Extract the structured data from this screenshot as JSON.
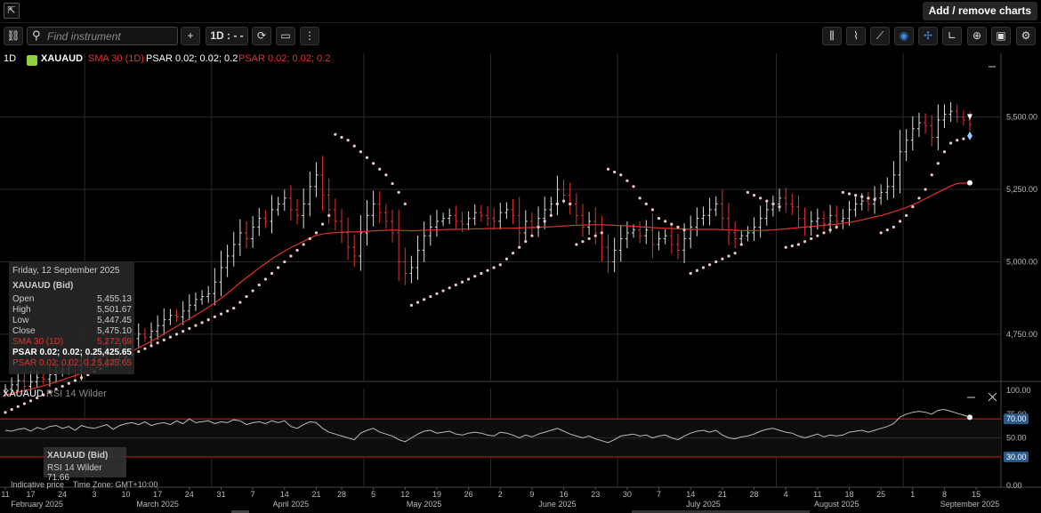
{
  "topbar": {
    "add_remove_label": "Add / remove charts",
    "logo_icon": "export-icon"
  },
  "toolbar": {
    "search_placeholder": "Find instrument",
    "timeframe_label": "1D : - -",
    "plus_label": "+",
    "left_icons": [
      "link-icon"
    ],
    "mid_icons": [
      "refresh-icon",
      "chart-type-icon",
      "more-vertical-icon"
    ],
    "right_icons": [
      "bar-chart-icon",
      "candle-chart-icon",
      "draw-line-icon",
      "eye-icon",
      "crosshair-icon",
      "indicator-icon",
      "zoom-icon",
      "camera-icon",
      "settings-icon"
    ]
  },
  "legend": {
    "timeframe": "1D",
    "symbol": "XAUAUD",
    "sma": "SMA 30 (1D)",
    "psar1": "PSAR 0.02; 0.02; 0.2",
    "psar2": "PSAR 0.02; 0.02; 0.2"
  },
  "info_box": {
    "date": "Friday, 12 September 2025",
    "title": "XAUAUD (Bid)",
    "rows": [
      {
        "k": "Open",
        "v": "5,455.13"
      },
      {
        "k": "High",
        "v": "5,501.67"
      },
      {
        "k": "Low",
        "v": "5,447.45"
      },
      {
        "k": "Close",
        "v": "5,475.10"
      },
      {
        "k": "SMA 30 (1D)",
        "v": "5,272.69"
      },
      {
        "k": "PSAR 0.02; 0.02; 0.2",
        "v": "5,425.65"
      },
      {
        "k": "PSAR 0.02; 0.02; 0.2",
        "v": "5,425.65"
      }
    ]
  },
  "rsi_panel": {
    "symbol": "XAUAUD",
    "label": "RSI 14 Wilder",
    "info_title": "XAUAUD (Bid)",
    "info_value": "RSI 14 Wilder 71.66",
    "footnote": "Indicative price    Time Zone: GMT+10:00"
  },
  "colors": {
    "up": "#dddddd",
    "down": "#e0322c",
    "sma": "#e0322c",
    "psar": "#f0c8c8",
    "rsi": "#bbbbbb",
    "level": "#d02020",
    "badge": "#2d5a8c"
  },
  "chart_data": {
    "type": "candlestick",
    "price_axis": {
      "ticks": [
        4750,
        5000,
        5250,
        5500
      ],
      "tick_labels": [
        "4,750.00",
        "5,000.00",
        "5,250.00",
        "5,500.00"
      ],
      "ylim": [
        4590,
        5720
      ]
    },
    "rsi_axis": {
      "ticks": [
        0,
        50,
        75,
        100
      ],
      "tick_labels": [
        "0.00",
        "50.00",
        "75.00",
        "100.00"
      ],
      "ylim": [
        -2,
        102
      ],
      "levels": [
        70,
        30
      ],
      "level_labels": [
        "70.00",
        "30.00"
      ]
    },
    "x_ticks": [
      {
        "label": "11",
        "i": 0
      },
      {
        "label": "17",
        "i": 4
      },
      {
        "label": "24",
        "i": 9
      },
      {
        "label": "3",
        "i": 14
      },
      {
        "label": "10",
        "i": 19
      },
      {
        "label": "17",
        "i": 24
      },
      {
        "label": "24",
        "i": 29
      },
      {
        "label": "31",
        "i": 34
      },
      {
        "label": "7",
        "i": 39
      },
      {
        "label": "14",
        "i": 44
      },
      {
        "label": "21",
        "i": 49
      },
      {
        "label": "28",
        "i": 53
      },
      {
        "label": "5",
        "i": 58
      },
      {
        "label": "12",
        "i": 63
      },
      {
        "label": "19",
        "i": 68
      },
      {
        "label": "26",
        "i": 73
      },
      {
        "label": "2",
        "i": 78
      },
      {
        "label": "9",
        "i": 83
      },
      {
        "label": "16",
        "i": 88
      },
      {
        "label": "23",
        "i": 93
      },
      {
        "label": "30",
        "i": 98
      },
      {
        "label": "7",
        "i": 103
      },
      {
        "label": "14",
        "i": 108
      },
      {
        "label": "21",
        "i": 113
      },
      {
        "label": "28",
        "i": 118
      },
      {
        "label": "4",
        "i": 123
      },
      {
        "label": "11",
        "i": 128
      },
      {
        "label": "18",
        "i": 133
      },
      {
        "label": "25",
        "i": 138
      },
      {
        "label": "1",
        "i": 143
      },
      {
        "label": "8",
        "i": 148
      },
      {
        "label": "15",
        "i": 153
      }
    ],
    "month_labels": [
      {
        "label": "February 2025",
        "i": 5
      },
      {
        "label": "March 2025",
        "i": 24
      },
      {
        "label": "April 2025",
        "i": 45
      },
      {
        "label": "May 2025",
        "i": 66
      },
      {
        "label": "June 2025",
        "i": 87
      },
      {
        "label": "July 2025",
        "i": 110
      },
      {
        "label": "August 2025",
        "i": 131
      },
      {
        "label": "September 2025",
        "i": 152
      }
    ],
    "close": [
      4560,
      4575,
      4590,
      4570,
      4585,
      4600,
      4595,
      4610,
      4620,
      4630,
      4640,
      4625,
      4650,
      4660,
      4670,
      4680,
      4700,
      4690,
      4710,
      4720,
      4735,
      4750,
      4740,
      4760,
      4780,
      4800,
      4815,
      4810,
      4830,
      4850,
      4870,
      4880,
      4890,
      4930,
      4980,
      5020,
      5060,
      5100,
      5080,
      5120,
      5150,
      5140,
      5180,
      5200,
      5220,
      5180,
      5160,
      5200,
      5260,
      5300,
      5230,
      5180,
      5140,
      5100,
      5050,
      5020,
      5100,
      5160,
      5200,
      5170,
      5140,
      5100,
      5000,
      4960,
      4980,
      5040,
      5090,
      5120,
      5140,
      5150,
      5160,
      5140,
      5130,
      5150,
      5170,
      5160,
      5150,
      5140,
      5170,
      5180,
      5160,
      5100,
      5140,
      5120,
      5150,
      5180,
      5200,
      5250,
      5230,
      5200,
      5160,
      5120,
      5140,
      5100,
      5050,
      5000,
      5040,
      5080,
      5100,
      5110,
      5090,
      5110,
      5060,
      5080,
      5090,
      5060,
      5040,
      5080,
      5120,
      5150,
      5160,
      5180,
      5200,
      5150,
      5100,
      5080,
      5090,
      5100,
      5120,
      5150,
      5180,
      5200,
      5220,
      5200,
      5190,
      5150,
      5120,
      5140,
      5150,
      5130,
      5160,
      5140,
      5150,
      5180,
      5200,
      5210,
      5200,
      5220,
      5240,
      5260,
      5300,
      5380,
      5420,
      5460,
      5480,
      5470,
      5430,
      5490,
      5510,
      5520,
      5500,
      5490,
      5475
    ],
    "sma": [
      4540,
      4545,
      4550,
      4555,
      4560,
      4566,
      4572,
      4578,
      4585,
      4592,
      4600,
      4607,
      4615,
      4623,
      4632,
      4641,
      4650,
      4660,
      4670,
      4681,
      4692,
      4703,
      4714,
      4726,
      4738,
      4751,
      4764,
      4777,
      4790,
      4803,
      4816,
      4829,
      4843,
      4858,
      4874,
      4891,
      4909,
      4928,
      4945,
      4962,
      4979,
      4994,
      5010,
      5024,
      5037,
      5049,
      5060,
      5071,
      5082,
      5091,
      5096,
      5099,
      5101,
      5102,
      5103,
      5103,
      5104,
      5105,
      5107,
      5108,
      5109,
      5110,
      5109,
      5108,
      5107,
      5108,
      5109,
      5110,
      5110,
      5111,
      5112,
      5112,
      5113,
      5113,
      5114,
      5114,
      5115,
      5115,
      5116,
      5116,
      5116,
      5117,
      5118,
      5118,
      5119,
      5120,
      5121,
      5122,
      5124,
      5125,
      5126,
      5127,
      5128,
      5128,
      5128,
      5127,
      5126,
      5125,
      5124,
      5123,
      5121,
      5120,
      5118,
      5117,
      5116,
      5115,
      5114,
      5113,
      5112,
      5112,
      5112,
      5112,
      5112,
      5111,
      5110,
      5109,
      5108,
      5108,
      5108,
      5108,
      5109,
      5110,
      5112,
      5114,
      5116,
      5118,
      5120,
      5122,
      5124,
      5126,
      5128,
      5130,
      5133,
      5136,
      5140,
      5145,
      5150,
      5155,
      5160,
      5166,
      5173,
      5180,
      5188,
      5197,
      5207,
      5218,
      5229,
      5240,
      5251,
      5262,
      5270,
      5272,
      5273
    ],
    "psar": [
      4480,
      4490,
      4500,
      4510,
      4520,
      4530,
      4540,
      4550,
      4560,
      4570,
      4580,
      4590,
      4600,
      4610,
      4620,
      4630,
      4640,
      4650,
      4660,
      4670,
      4680,
      4690,
      4700,
      4710,
      4720,
      4730,
      4740,
      4750,
      4760,
      4770,
      4780,
      4790,
      4800,
      4810,
      4820,
      4830,
      4840,
      4860,
      4880,
      4900,
      4920,
      4940,
      4960,
      4980,
      5000,
      5020,
      5040,
      5060,
      5080,
      5100,
      5130,
      5160,
      5440,
      5430,
      5420,
      5400,
      5380,
      5360,
      5340,
      5320,
      5300,
      5270,
      5240,
      5200,
      4850,
      4860,
      4870,
      4880,
      4890,
      4900,
      4910,
      4920,
      4930,
      4940,
      4950,
      4960,
      4970,
      4980,
      4990,
      5010,
      5030,
      5050,
      5070,
      5090,
      5120,
      5140,
      5160,
      5200,
      5210,
      5200,
      5060,
      5070,
      5080,
      5090,
      5100,
      5320,
      5310,
      5300,
      5280,
      5260,
      5220,
      5200,
      5180,
      5150,
      5140,
      5130,
      5120,
      5110,
      4960,
      4970,
      4980,
      4990,
      5000,
      5010,
      5020,
      5030,
      5060,
      5240,
      5230,
      5220,
      5210,
      5200,
      5190,
      5050,
      5055,
      5060,
      5070,
      5080,
      5090,
      5100,
      5110,
      5120,
      5240,
      5235,
      5230,
      5225,
      5220,
      5215,
      5100,
      5110,
      5120,
      5140,
      5160,
      5190,
      5220,
      5250,
      5300,
      5340,
      5380,
      5410,
      5420,
      5425
    ],
    "rsi": [
      58,
      57,
      59,
      60,
      57,
      61,
      59,
      62,
      63,
      60,
      62,
      58,
      63,
      61,
      60,
      62,
      64,
      59,
      63,
      65,
      66,
      64,
      67,
      63,
      65,
      66,
      64,
      68,
      65,
      70,
      66,
      67,
      68,
      65,
      67,
      66,
      69,
      68,
      64,
      66,
      67,
      65,
      68,
      66,
      68,
      62,
      60,
      64,
      67,
      66,
      60,
      56,
      54,
      52,
      50,
      48,
      55,
      58,
      60,
      56,
      54,
      52,
      48,
      46,
      50,
      54,
      57,
      58,
      55,
      56,
      57,
      54,
      53,
      55,
      56,
      55,
      53,
      52,
      56,
      55,
      53,
      50,
      53,
      51,
      54,
      56,
      58,
      60,
      57,
      54,
      52,
      50,
      52,
      49,
      47,
      45,
      48,
      52,
      53,
      54,
      52,
      53,
      50,
      52,
      53,
      50,
      48,
      52,
      55,
      57,
      58,
      56,
      58,
      53,
      50,
      49,
      51,
      52,
      54,
      57,
      59,
      60,
      58,
      56,
      55,
      52,
      50,
      52,
      54,
      51,
      53,
      52,
      53,
      56,
      57,
      58,
      56,
      58,
      60,
      62,
      65,
      72,
      75,
      77,
      78,
      77,
      75,
      79,
      80,
      78,
      76,
      74,
      71.66
    ]
  }
}
